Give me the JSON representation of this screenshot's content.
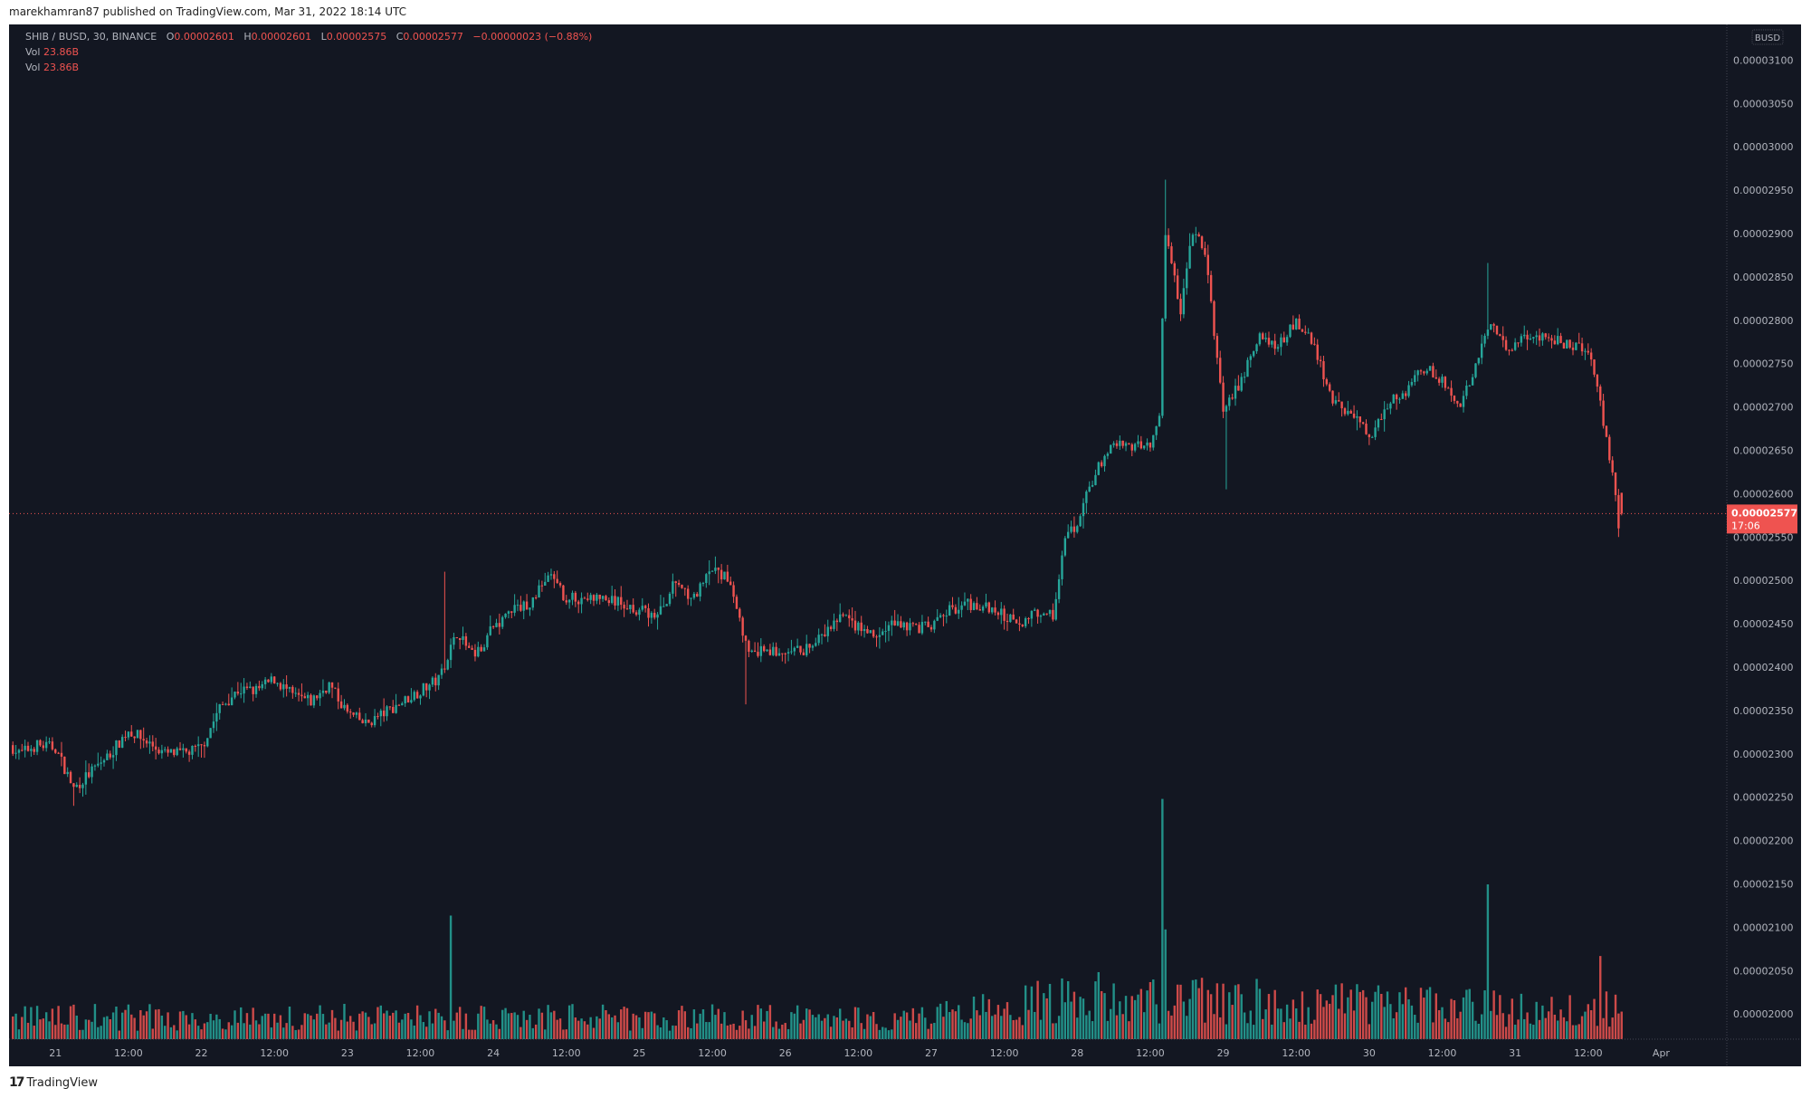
{
  "published": "marekhamran87 published on TradingView.com, Mar 31, 2022 18:14 UTC",
  "legend": {
    "symbol": "SHIB / BUSD, 30, BINANCE",
    "o_label": "O",
    "o": "0.00002601",
    "h_label": "H",
    "h": "0.00002601",
    "l_label": "L",
    "l": "0.00002575",
    "c_label": "C",
    "c": "0.00002577",
    "change": "−0.00000023 (−0.88%)",
    "vol1_label": "Vol",
    "vol1": "23.86B",
    "vol2_label": "Vol",
    "vol2": "23.86B"
  },
  "currency_badge": "BUSD",
  "last_price_tag": {
    "price": "0.00002577",
    "countdown": "17:06"
  },
  "footer": {
    "logo": "17",
    "brand": "TradingView"
  },
  "colors": {
    "background": "#131722",
    "up": "#26a69a",
    "down": "#ef5350",
    "text": "#b2b5be"
  },
  "chart_data": {
    "type": "candlestick",
    "interval": "30",
    "price_unit": "1e-8 BUSD",
    "yticks": [
      "0.00002000",
      "0.00002050",
      "0.00002100",
      "0.00002150",
      "0.00002200",
      "0.00002250",
      "0.00002300",
      "0.00002350",
      "0.00002400",
      "0.00002450",
      "0.00002500",
      "0.00002550",
      "0.00002600",
      "0.00002650",
      "0.00002700",
      "0.00002750",
      "0.00002800",
      "0.00002850",
      "0.00002900",
      "0.00002950",
      "0.00003000",
      "0.00003050",
      "0.00003100"
    ],
    "xticks": [
      "21",
      "12:00",
      "22",
      "12:00",
      "23",
      "12:00",
      "24",
      "12:00",
      "25",
      "12:00",
      "26",
      "12:00",
      "27",
      "12:00",
      "28",
      "12:00",
      "29",
      "12:00",
      "30",
      "12:00",
      "31",
      "12:00",
      "Apr"
    ],
    "grid": false,
    "close_path": [
      [
        "2022-03-20T17:00",
        2307
      ],
      [
        "2022-03-20T18:00",
        2300
      ],
      [
        "2022-03-20T21:00",
        2310
      ],
      [
        "2022-03-21T00:00",
        2307
      ],
      [
        "2022-03-21T03:00",
        2260
      ],
      [
        "2022-03-21T06:00",
        2280
      ],
      [
        "2022-03-21T09:00",
        2300
      ],
      [
        "2022-03-21T12:00",
        2327
      ],
      [
        "2022-03-21T15:00",
        2314
      ],
      [
        "2022-03-21T18:00",
        2300
      ],
      [
        "2022-03-21T21:00",
        2300
      ],
      [
        "2022-03-22T00:00",
        2307
      ],
      [
        "2022-03-22T03:00",
        2353
      ],
      [
        "2022-03-22T06:00",
        2373
      ],
      [
        "2022-03-22T09:00",
        2373
      ],
      [
        "2022-03-22T12:00",
        2386
      ],
      [
        "2022-03-22T15:00",
        2367
      ],
      [
        "2022-03-22T18:00",
        2360
      ],
      [
        "2022-03-22T21:00",
        2380
      ],
      [
        "2022-03-23T00:00",
        2347
      ],
      [
        "2022-03-23T03:00",
        2334
      ],
      [
        "2022-03-23T06:00",
        2347
      ],
      [
        "2022-03-23T09:00",
        2360
      ],
      [
        "2022-03-23T12:00",
        2373
      ],
      [
        "2022-03-23T15:00",
        2386
      ],
      [
        "2022-03-23T18:00",
        2440
      ],
      [
        "2022-03-23T21:00",
        2413
      ],
      [
        "2022-03-24T00:00",
        2446
      ],
      [
        "2022-03-24T03:00",
        2466
      ],
      [
        "2022-03-24T06:00",
        2473
      ],
      [
        "2022-03-24T09:00",
        2506
      ],
      [
        "2022-03-24T12:00",
        2479
      ],
      [
        "2022-03-24T15:00",
        2479
      ],
      [
        "2022-03-24T18:00",
        2479
      ],
      [
        "2022-03-24T21:00",
        2473
      ],
      [
        "2022-03-25T00:00",
        2466
      ],
      [
        "2022-03-25T03:00",
        2459
      ],
      [
        "2022-03-25T06:00",
        2499
      ],
      [
        "2022-03-25T09:00",
        2479
      ],
      [
        "2022-03-25T12:00",
        2512
      ],
      [
        "2022-03-25T15:00",
        2499
      ],
      [
        "2022-03-25T18:00",
        2413
      ],
      [
        "2022-03-25T21:00",
        2420
      ],
      [
        "2022-03-26T00:00",
        2413
      ],
      [
        "2022-03-26T03:00",
        2420
      ],
      [
        "2022-03-26T06:00",
        2433
      ],
      [
        "2022-03-26T09:00",
        2459
      ],
      [
        "2022-03-26T12:00",
        2446
      ],
      [
        "2022-03-26T15:00",
        2433
      ],
      [
        "2022-03-26T18:00",
        2453
      ],
      [
        "2022-03-26T21:00",
        2446
      ],
      [
        "2022-03-27T00:00",
        2446
      ],
      [
        "2022-03-27T03:00",
        2466
      ],
      [
        "2022-03-27T06:00",
        2473
      ],
      [
        "2022-03-27T09:00",
        2469
      ],
      [
        "2022-03-27T12:00",
        2459
      ],
      [
        "2022-03-27T15:00",
        2453
      ],
      [
        "2022-03-27T18:00",
        2466
      ],
      [
        "2022-03-27T20:00",
        2459
      ],
      [
        "2022-03-27T22:00",
        2546
      ],
      [
        "2022-03-28T00:00",
        2566
      ],
      [
        "2022-03-28T03:00",
        2625
      ],
      [
        "2022-03-28T06:00",
        2658
      ],
      [
        "2022-03-28T09:00",
        2652
      ],
      [
        "2022-03-28T12:00",
        2658
      ],
      [
        "2022-03-28T13:30",
        2692
      ],
      [
        "2022-03-28T14:30",
        2904
      ],
      [
        "2022-03-28T15:30",
        2864
      ],
      [
        "2022-03-28T17:00",
        2811
      ],
      [
        "2022-03-28T19:00",
        2904
      ],
      [
        "2022-03-28T21:00",
        2877
      ],
      [
        "2022-03-28T23:00",
        2758
      ],
      [
        "2022-03-29T00:00",
        2692
      ],
      [
        "2022-03-29T03:00",
        2731
      ],
      [
        "2022-03-29T06:00",
        2784
      ],
      [
        "2022-03-29T09:00",
        2771
      ],
      [
        "2022-03-29T12:00",
        2797
      ],
      [
        "2022-03-29T15:00",
        2771
      ],
      [
        "2022-03-29T18:00",
        2705
      ],
      [
        "2022-03-29T21:00",
        2692
      ],
      [
        "2022-03-30T00:00",
        2665
      ],
      [
        "2022-03-30T03:00",
        2705
      ],
      [
        "2022-03-30T06:00",
        2718
      ],
      [
        "2022-03-30T09:00",
        2745
      ],
      [
        "2022-03-30T12:00",
        2731
      ],
      [
        "2022-03-30T15:00",
        2698
      ],
      [
        "2022-03-30T18:00",
        2758
      ],
      [
        "2022-03-30T20:00",
        2797
      ],
      [
        "2022-03-30T22:00",
        2771
      ],
      [
        "2022-03-31T00:00",
        2771
      ],
      [
        "2022-03-31T03:00",
        2784
      ],
      [
        "2022-03-31T06:00",
        2777
      ],
      [
        "2022-03-31T09:00",
        2771
      ],
      [
        "2022-03-31T12:00",
        2764
      ],
      [
        "2022-03-31T14:00",
        2705
      ],
      [
        "2022-03-31T16:00",
        2625
      ],
      [
        "2022-03-31T17:00",
        2559
      ],
      [
        "2022-03-31T17:30",
        2577
      ]
    ],
    "wick_extremes": [
      [
        "2022-03-21T03:00",
        2240
      ],
      [
        "2022-03-23T16:00",
        2510
      ],
      [
        "2022-03-25T17:30",
        2357
      ],
      [
        "2022-03-28T14:30",
        2962
      ],
      [
        "2022-03-29T00:30",
        2605
      ],
      [
        "2022-03-30T19:30",
        2866
      ],
      [
        "2022-03-31T17:00",
        2550
      ]
    ],
    "last_candle": {
      "open": 2601,
      "high": 2601,
      "low": 2575,
      "close": 2577
    },
    "volume_unit": "B",
    "volume_typical": [
      [
        "2022-03-20",
        18
      ],
      [
        "2022-03-27",
        18
      ],
      [
        "2022-03-28",
        35
      ],
      [
        "2022-03-31",
        25
      ]
    ],
    "volume_spikes": [
      [
        "2022-03-23T17:00",
        107
      ],
      [
        "2022-03-28T14:00",
        208
      ],
      [
        "2022-03-28T14:30",
        95
      ],
      [
        "2022-03-30T19:30",
        134
      ],
      [
        "2022-03-31T14:00",
        72
      ],
      [
        "2022-03-31T17:30",
        23.86
      ]
    ]
  }
}
